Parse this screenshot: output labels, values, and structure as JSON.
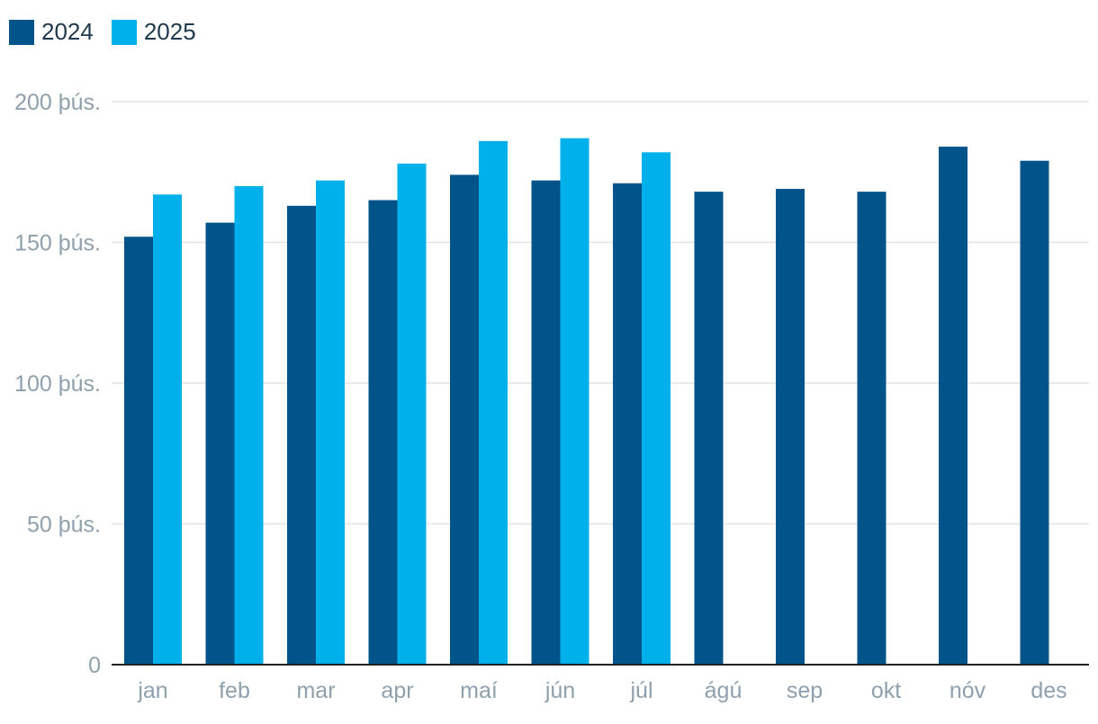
{
  "chart_data": {
    "type": "bar",
    "title": "",
    "xlabel": "",
    "ylabel": "",
    "categories": [
      "jan",
      "feb",
      "mar",
      "apr",
      "maí",
      "jún",
      "júl",
      "ágú",
      "sep",
      "okt",
      "nóv",
      "des"
    ],
    "series": [
      {
        "name": "2024",
        "color": "#00548a",
        "values": [
          152000,
          157000,
          163000,
          165000,
          174000,
          172000,
          171000,
          168000,
          169000,
          168000,
          184000,
          179000
        ]
      },
      {
        "name": "2025",
        "color": "#00b0ea",
        "values": [
          167000,
          170000,
          172000,
          178000,
          186000,
          187000,
          182000,
          null,
          null,
          null,
          null,
          null
        ]
      }
    ],
    "ylim": [
      0,
      200000
    ],
    "yticks": [
      {
        "value": 0,
        "label": "0"
      },
      {
        "value": 50000,
        "label": "50 þús."
      },
      {
        "value": 100000,
        "label": "100 þús."
      },
      {
        "value": 150000,
        "label": "150 þús."
      },
      {
        "value": 200000,
        "label": "200 þús."
      }
    ],
    "grid": true,
    "legend_position": "top-left"
  }
}
